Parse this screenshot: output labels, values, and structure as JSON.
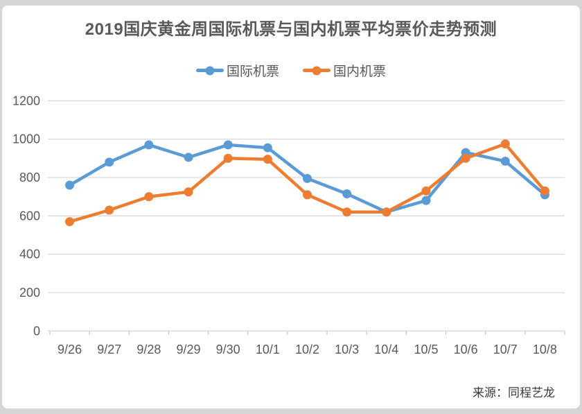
{
  "title": "2019国庆黄金周国际机票与国内机票平均票价走势预测",
  "source": "来源：同程艺龙",
  "colors": {
    "background": "#d6d6d6",
    "card": "#ffffff",
    "title_text": "#595959",
    "axis_text": "#595959",
    "gridline": "#d9d9d9",
    "axis_line": "#c9c9c9",
    "series_international": "#5B9BD5",
    "series_domestic": "#ED7D31"
  },
  "chart_data": {
    "type": "line",
    "title": "2019国庆黄金周国际机票与国内机票平均票价走势预测",
    "categories": [
      "9/26",
      "9/27",
      "9/28",
      "9/29",
      "9/30",
      "10/1",
      "10/2",
      "10/3",
      "10/4",
      "10/5",
      "10/6",
      "10/7",
      "10/8"
    ],
    "series": [
      {
        "name": "国际机票",
        "color": "#5B9BD5",
        "values": [
          760,
          880,
          970,
          905,
          970,
          955,
          795,
          715,
          620,
          680,
          930,
          885,
          710
        ]
      },
      {
        "name": "国内机票",
        "color": "#ED7D31",
        "values": [
          570,
          630,
          700,
          725,
          900,
          895,
          710,
          620,
          620,
          730,
          900,
          975,
          730
        ]
      }
    ],
    "xlabel": "",
    "ylabel": "",
    "ylim": [
      0,
      1200
    ],
    "yticks": [
      0,
      200,
      400,
      600,
      800,
      1000,
      1200
    ],
    "grid": true,
    "legend_position": "top",
    "marker": "circle",
    "line_width": 4.5,
    "marker_radius": 6.5
  }
}
